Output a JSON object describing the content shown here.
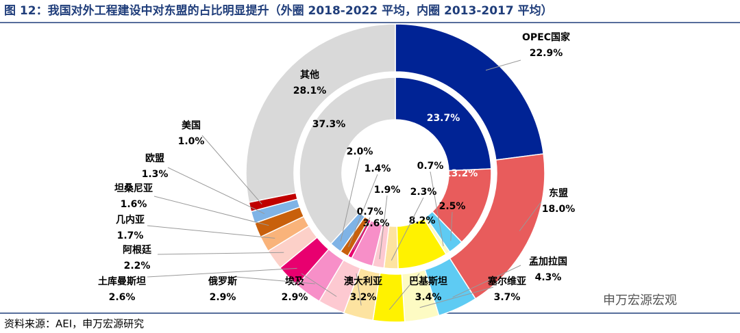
{
  "chart_data": {
    "type": "donut",
    "title": "图 12：我国对外工程建设中对东盟的占比明显提升（外圈 2018-2022 平均，内圈 2013-2017 平均）",
    "source": "资料来源：AEI，申万宏源研究",
    "watermark": "申万宏源宏观",
    "categories": [
      "OPEC国家",
      "东盟",
      "孟加拉国",
      "塞尔维亚",
      "巴基斯坦",
      "澳大利亚",
      "埃及",
      "俄罗斯",
      "土库曼斯坦",
      "阿根廷",
      "几内亚",
      "坦桑尼亚",
      "欧盟",
      "美国",
      "其他"
    ],
    "colors": [
      "#002395",
      "#e85c5c",
      "#5ecbf3",
      "#fdfbc3",
      "#fff200",
      "#fde3a0",
      "#fdc9d1",
      "#f78fc8",
      "#e8006f",
      "#fcd0c8",
      "#f9b37a",
      "#c8600c",
      "#7fb3e6",
      "#c00000",
      "#d9d9d9"
    ],
    "series": [
      {
        "values": [
          22.9,
          18.0,
          4.3,
          3.7,
          3.4,
          3.2,
          2.9,
          2.9,
          2.6,
          2.2,
          1.7,
          1.6,
          1.3,
          1.0,
          28.1
        ],
        "value_labels": [
          "22.9%",
          "18.0%",
          "4.3%",
          "3.7%",
          "3.4%",
          "3.2%",
          "2.9%",
          "2.9%",
          "2.6%",
          "2.2%",
          "1.7%",
          "1.6%",
          "1.3%",
          "1.0%",
          "28.1%"
        ]
      },
      {
        "values": [
          23.7,
          13.2,
          2.5,
          0.7,
          8.2,
          2.3,
          1.9,
          3.6,
          0.7,
          null,
          null,
          1.4,
          2.0,
          null,
          37.3
        ],
        "value_labels": [
          "23.7%",
          "13.2%",
          "2.5%",
          "0.7%",
          "8.2%",
          "2.3%",
          "1.9%",
          "3.6%",
          "0.7%",
          null,
          null,
          "1.4%",
          "2.0%",
          null,
          "37.3%"
        ]
      }
    ]
  }
}
